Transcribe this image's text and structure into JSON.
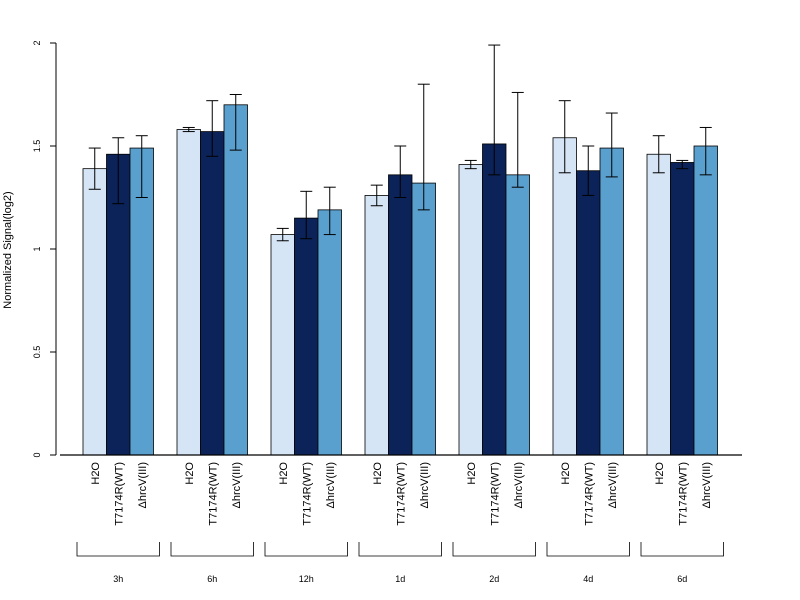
{
  "chart_data": {
    "type": "bar",
    "title": "",
    "xlabel": "",
    "ylabel": "Normalized Signal(log2)",
    "ylim": [
      0,
      2
    ],
    "y_ticks": [
      0,
      0.5,
      1,
      1.5,
      2
    ],
    "y_tick_labels": [
      "0",
      "0.5",
      "1",
      "1.5",
      "2"
    ],
    "grid": false,
    "groups": [
      "3h",
      "6h",
      "12h",
      "1d",
      "2d",
      "4d",
      "6d"
    ],
    "bar_labels": [
      "H2O",
      "T7174R(WT)",
      "ΔhrcV(III)"
    ],
    "colors": [
      "#d6e5f5",
      "#0b2358",
      "#5aa0cf"
    ],
    "series": [
      {
        "values": [
          1.39,
          1.58,
          1.07,
          1.26,
          1.41,
          1.54,
          1.46
        ],
        "err_low": [
          1.29,
          1.57,
          1.04,
          1.21,
          1.39,
          1.37,
          1.37
        ],
        "err_high": [
          1.49,
          1.59,
          1.1,
          1.31,
          1.43,
          1.72,
          1.55
        ]
      },
      {
        "values": [
          1.46,
          1.57,
          1.15,
          1.36,
          1.51,
          1.38,
          1.42
        ],
        "err_low": [
          1.22,
          1.45,
          1.05,
          1.25,
          1.36,
          1.26,
          1.39
        ],
        "err_high": [
          1.54,
          1.72,
          1.28,
          1.5,
          1.99,
          1.5,
          1.43
        ]
      },
      {
        "values": [
          1.49,
          1.7,
          1.19,
          1.32,
          1.36,
          1.49,
          1.5
        ],
        "err_low": [
          1.25,
          1.48,
          1.07,
          1.19,
          1.3,
          1.35,
          1.36
        ],
        "err_high": [
          1.55,
          1.75,
          1.3,
          1.8,
          1.76,
          1.66,
          1.59
        ]
      }
    ]
  }
}
